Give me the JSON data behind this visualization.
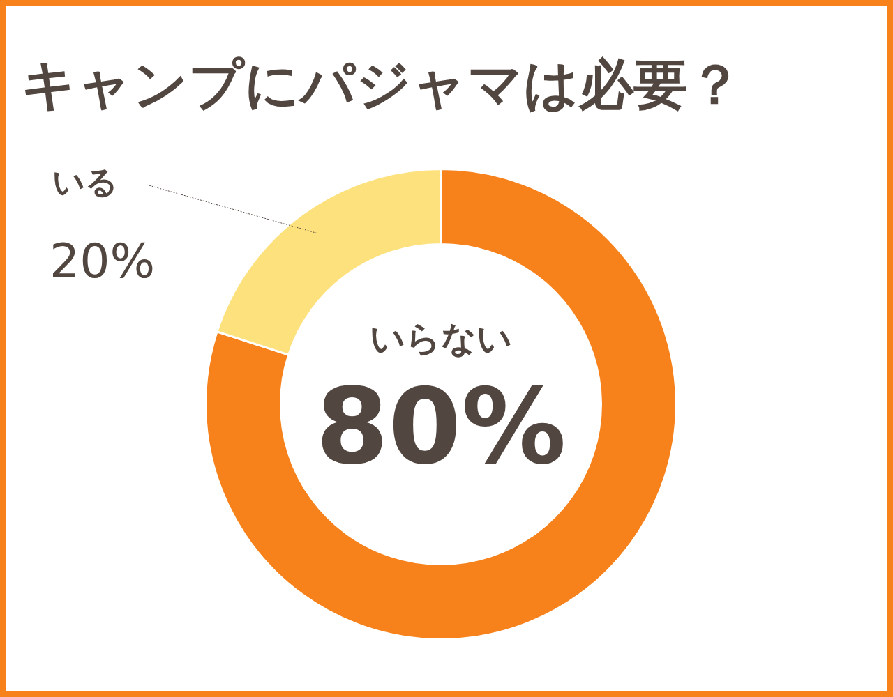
{
  "chart_data": {
    "type": "donut",
    "title": "キャンプにパジャマは必要？",
    "categories": [
      "いらない",
      "いる"
    ],
    "values": [
      80,
      20
    ],
    "colors": [
      "#f7821c",
      "#fde17d"
    ],
    "value_labels": [
      "80%",
      "20%"
    ],
    "legend": false
  }
}
